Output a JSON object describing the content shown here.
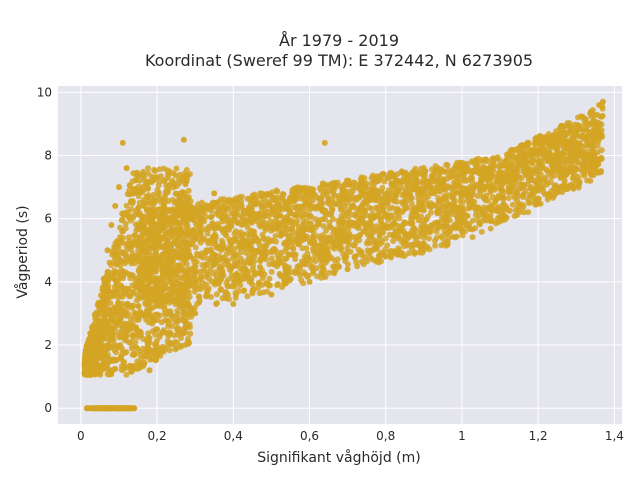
{
  "chart_data": {
    "type": "scatter",
    "title_line1": "År 1979 - 2019",
    "title_line2": "Koordinat (Sweref 99 TM): E 372442, N 6273905",
    "xlabel": "Signifikant våghöjd (m)",
    "ylabel": "Vågperiod (s)",
    "xlim": [
      -0.06,
      1.42
    ],
    "ylim": [
      -0.5,
      10.2
    ],
    "x_ticks": [
      {
        "value": 0,
        "label": "0"
      },
      {
        "value": 0.2,
        "label": "0,2"
      },
      {
        "value": 0.4,
        "label": "0,4"
      },
      {
        "value": 0.6,
        "label": "0,6"
      },
      {
        "value": 0.8,
        "label": "0,8"
      },
      {
        "value": 1.0,
        "label": "1"
      },
      {
        "value": 1.2,
        "label": "1,2"
      },
      {
        "value": 1.4,
        "label": "1,4"
      }
    ],
    "y_ticks": [
      {
        "value": 0,
        "label": "0"
      },
      {
        "value": 2,
        "label": "2"
      },
      {
        "value": 4,
        "label": "4"
      },
      {
        "value": 6,
        "label": "6"
      },
      {
        "value": 8,
        "label": "8"
      },
      {
        "value": 10,
        "label": "10"
      }
    ],
    "grid": true,
    "marker_color": "#D4A423",
    "background_color": "#E5E5EE",
    "series": [
      {
        "points": [
          [
            0.02,
            0.0
          ],
          [
            0.05,
            0.0
          ],
          [
            0.08,
            0.0
          ],
          [
            0.11,
            0.0
          ],
          [
            0.14,
            0.0
          ],
          [
            0.01,
            1.1
          ],
          [
            0.03,
            1.6
          ],
          [
            0.04,
            2.4
          ],
          [
            0.05,
            3.2
          ],
          [
            0.06,
            4.1
          ],
          [
            0.07,
            5.0
          ],
          [
            0.08,
            5.8
          ],
          [
            0.09,
            6.4
          ],
          [
            0.1,
            7.0
          ],
          [
            0.12,
            7.6
          ],
          [
            0.11,
            8.4
          ],
          [
            0.15,
            1.3
          ],
          [
            0.18,
            1.2
          ],
          [
            0.2,
            2.5
          ],
          [
            0.22,
            3.4
          ],
          [
            0.25,
            4.4
          ],
          [
            0.27,
            8.5
          ],
          [
            0.3,
            3.0
          ],
          [
            0.33,
            5.0
          ],
          [
            0.35,
            6.8
          ],
          [
            0.4,
            3.3
          ],
          [
            0.45,
            5.3
          ],
          [
            0.5,
            3.6
          ],
          [
            0.55,
            6.2
          ],
          [
            0.6,
            4.0
          ],
          [
            0.64,
            8.4
          ],
          [
            0.7,
            4.4
          ],
          [
            0.75,
            6.6
          ],
          [
            0.8,
            4.8
          ],
          [
            0.85,
            6.8
          ],
          [
            0.9,
            5.2
          ],
          [
            0.95,
            7.1
          ],
          [
            1.0,
            5.6
          ],
          [
            1.05,
            7.4
          ],
          [
            1.1,
            6.0
          ],
          [
            1.15,
            7.8
          ],
          [
            1.2,
            6.5
          ],
          [
            1.25,
            8.1
          ],
          [
            1.3,
            7.2
          ],
          [
            1.33,
            8.6
          ],
          [
            1.36,
            9.6
          ],
          [
            1.37,
            9.7
          ]
        ]
      }
    ]
  }
}
